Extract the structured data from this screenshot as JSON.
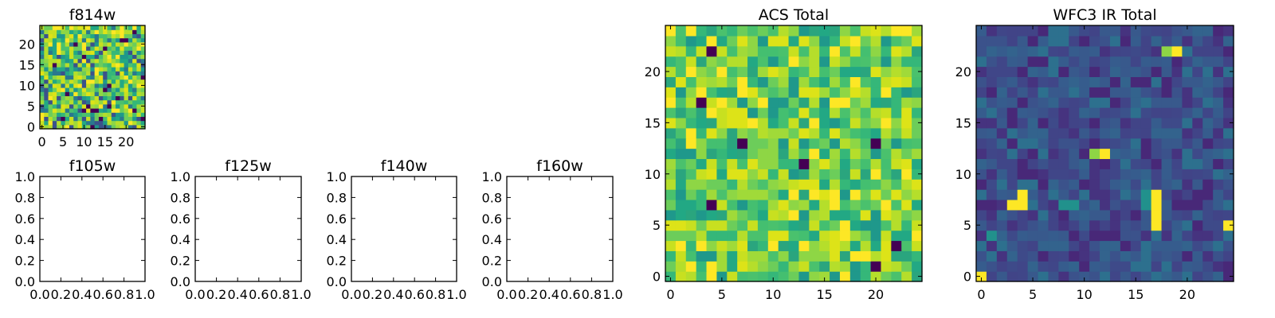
{
  "chart_data": [
    {
      "type": "heatmap",
      "title": "f814w",
      "xlim": [
        -0.5,
        24.5
      ],
      "ylim": [
        -0.5,
        24.5
      ],
      "x_ticks": [
        0,
        5,
        10,
        15,
        20
      ],
      "y_ticks": [
        0,
        5,
        10,
        15,
        20
      ],
      "grid_size": [
        25,
        25
      ],
      "colormap": "viridis",
      "note": "fine random pixel noise in green/yellow tones; per-pixel values not readable"
    },
    {
      "type": "line",
      "title": "f105w",
      "xlim": [
        0.0,
        1.0
      ],
      "ylim": [
        0.0,
        1.0
      ],
      "x_ticks": [
        "0.0",
        "0.2",
        "0.4",
        "0.6",
        "0.8",
        "1.0"
      ],
      "y_ticks": [
        "0.0",
        "0.2",
        "0.4",
        "0.6",
        "0.8",
        "1.0"
      ],
      "series": []
    },
    {
      "type": "line",
      "title": "f125w",
      "xlim": [
        0.0,
        1.0
      ],
      "ylim": [
        0.0,
        1.0
      ],
      "x_ticks": [
        "0.0",
        "0.2",
        "0.4",
        "0.6",
        "0.8",
        "1.0"
      ],
      "y_ticks": [
        "0.0",
        "0.2",
        "0.4",
        "0.6",
        "0.8",
        "1.0"
      ],
      "series": []
    },
    {
      "type": "line",
      "title": "f140w",
      "xlim": [
        0.0,
        1.0
      ],
      "ylim": [
        0.0,
        1.0
      ],
      "x_ticks": [
        "0.0",
        "0.2",
        "0.4",
        "0.6",
        "0.8",
        "1.0"
      ],
      "y_ticks": [
        "0.0",
        "0.2",
        "0.4",
        "0.6",
        "0.8",
        "1.0"
      ],
      "series": []
    },
    {
      "type": "line",
      "title": "f160w",
      "xlim": [
        0.0,
        1.0
      ],
      "ylim": [
        0.0,
        1.0
      ],
      "x_ticks": [
        "0.0",
        "0.2",
        "0.4",
        "0.6",
        "0.8",
        "1.0"
      ],
      "y_ticks": [
        "0.0",
        "0.2",
        "0.4",
        "0.6",
        "0.8",
        "1.0"
      ],
      "series": []
    },
    {
      "type": "heatmap",
      "title": "ACS Total",
      "xlim": [
        -0.5,
        24.5
      ],
      "ylim": [
        -0.5,
        24.5
      ],
      "x_ticks": [
        0,
        5,
        10,
        15,
        20
      ],
      "y_ticks": [
        0,
        5,
        10,
        15,
        20
      ],
      "grid_size": [
        25,
        25
      ],
      "colormap": "viridis",
      "note": "mostly green/yellow; dark purple pixels approx. at (4,22),(3,17),(7,13),(20,13),(13,11),(4,7),(20,1),(22,3)",
      "dark_pixels": [
        [
          4,
          22
        ],
        [
          3,
          17
        ],
        [
          7,
          13
        ],
        [
          20,
          13
        ],
        [
          13,
          11
        ],
        [
          4,
          7
        ],
        [
          20,
          1
        ],
        [
          22,
          3
        ]
      ]
    },
    {
      "type": "heatmap",
      "title": "WFC3 IR Total",
      "xlim": [
        -0.5,
        24.5
      ],
      "ylim": [
        -0.5,
        24.5
      ],
      "x_ticks": [
        0,
        5,
        10,
        15,
        20
      ],
      "y_ticks": [
        0,
        5,
        10,
        15,
        20
      ],
      "grid_size": [
        25,
        25
      ],
      "colormap": "viridis",
      "note": "mostly dark blue/purple; bright yellow pixels approx. at (0,0),(3,7),(4,7),(4,8),(12,12),(17,8),(17,7),(17,6),(17,5),(19,22),(24,5)",
      "bright_pixels": [
        [
          0,
          0
        ],
        [
          3,
          7
        ],
        [
          4,
          7
        ],
        [
          4,
          8
        ],
        [
          12,
          12
        ],
        [
          17,
          8
        ],
        [
          17,
          7
        ],
        [
          17,
          6
        ],
        [
          17,
          5
        ],
        [
          19,
          22
        ],
        [
          24,
          5
        ]
      ],
      "mid_pixels": [
        [
          18,
          22
        ],
        [
          11,
          12
        ],
        [
          16,
          8
        ],
        [
          16,
          7
        ],
        [
          8,
          7
        ],
        [
          9,
          7
        ],
        [
          1,
          4
        ]
      ]
    }
  ]
}
